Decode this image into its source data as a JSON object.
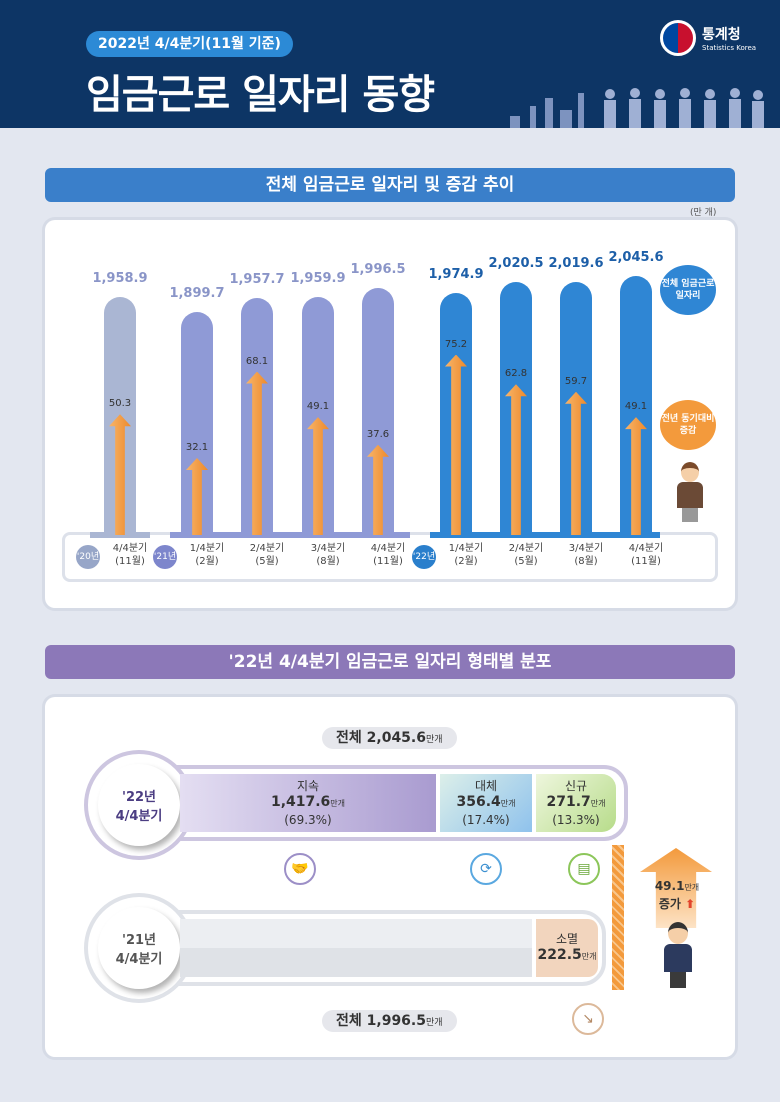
{
  "header": {
    "badge": "2022년 4/4분기(11월 기준)",
    "title": "임금근로 일자리 동향",
    "logo_name": "통계청",
    "logo_sub": "Statistics Korea"
  },
  "section1": {
    "title": "전체 임금근로 일자리 및 증감 추이",
    "unit": "(만 개)",
    "callout_total": "전체 임금근로 일자리",
    "callout_change": "전년 동기대비 증감"
  },
  "chart_data": {
    "type": "bar",
    "title": "전체 임금근로 일자리 및 증감 추이",
    "unit": "만 개",
    "categories": [
      "4/4분기 (11월)",
      "1/4분기 (2월)",
      "2/4분기 (5월)",
      "3/4분기 (8월)",
      "4/4분기 (11월)",
      "1/4분기 (2월)",
      "2/4분기 (5월)",
      "3/4분기 (8월)",
      "4/4분기 (11월)"
    ],
    "quarter_labels": [
      "4/4분기",
      "1/4분기",
      "2/4분기",
      "3/4분기",
      "4/4분기",
      "1/4분기",
      "2/4분기",
      "3/4분기",
      "4/4분기"
    ],
    "month_labels": [
      "(11월)",
      "(2월)",
      "(5월)",
      "(8월)",
      "(11월)",
      "(2월)",
      "(5월)",
      "(8월)",
      "(11월)"
    ],
    "year_labels": [
      {
        "label": "'20년",
        "index": 0,
        "color": "#97a6c8"
      },
      {
        "label": "'21년",
        "index": 1,
        "color": "#7d86cc"
      },
      {
        "label": "'22년",
        "index": 5,
        "color": "#2a7fcc"
      }
    ],
    "series": [
      {
        "name": "전체 임금근로 일자리",
        "values": [
          1958.9,
          1899.7,
          1957.7,
          1959.9,
          1996.5,
          1974.9,
          2020.5,
          2019.6,
          2045.6
        ],
        "display": [
          "1,958.9",
          "1,899.7",
          "1,957.7",
          "1,959.9",
          "1,996.5",
          "1,974.9",
          "2,020.5",
          "2,019.6",
          "2,045.6"
        ]
      },
      {
        "name": "전년 동기대비 증감",
        "values": [
          50.3,
          32.1,
          68.1,
          49.1,
          37.6,
          75.2,
          62.8,
          59.7,
          49.1
        ]
      }
    ],
    "colors": {
      "y2020": "#aab6d3",
      "y2021": "#8f9ad6",
      "y2022": "#2f86d4",
      "arrow": "#f39a3c"
    }
  },
  "section2": {
    "title": "'22년 4/4분기 임금근로 일자리 형태별 분포",
    "total_2022": {
      "label": "전체",
      "value": "2,045.6",
      "unit": "만개"
    },
    "total_2021": {
      "label": "전체",
      "value": "1,996.5",
      "unit": "만개"
    },
    "row2022": {
      "year": "'22년",
      "quarter": "4/4분기",
      "segments": [
        {
          "name": "지속",
          "value": "1,417.6",
          "unit": "만개",
          "pct": "(69.3%)",
          "color": "#a99bd0"
        },
        {
          "name": "대체",
          "value": "356.4",
          "unit": "만개",
          "pct": "(17.4%)",
          "color": "#a9d2ee"
        },
        {
          "name": "신규",
          "value": "271.7",
          "unit": "만개",
          "pct": "(13.3%)",
          "color": "#c6e3a0"
        }
      ]
    },
    "row2021": {
      "year": "'21년",
      "quarter": "4/4분기",
      "segment": {
        "name": "소멸",
        "value": "222.5",
        "unit": "만개",
        "color": "#f2d5be"
      }
    },
    "increase": {
      "value": "49.1",
      "unit": "만개",
      "label": "증가"
    }
  }
}
